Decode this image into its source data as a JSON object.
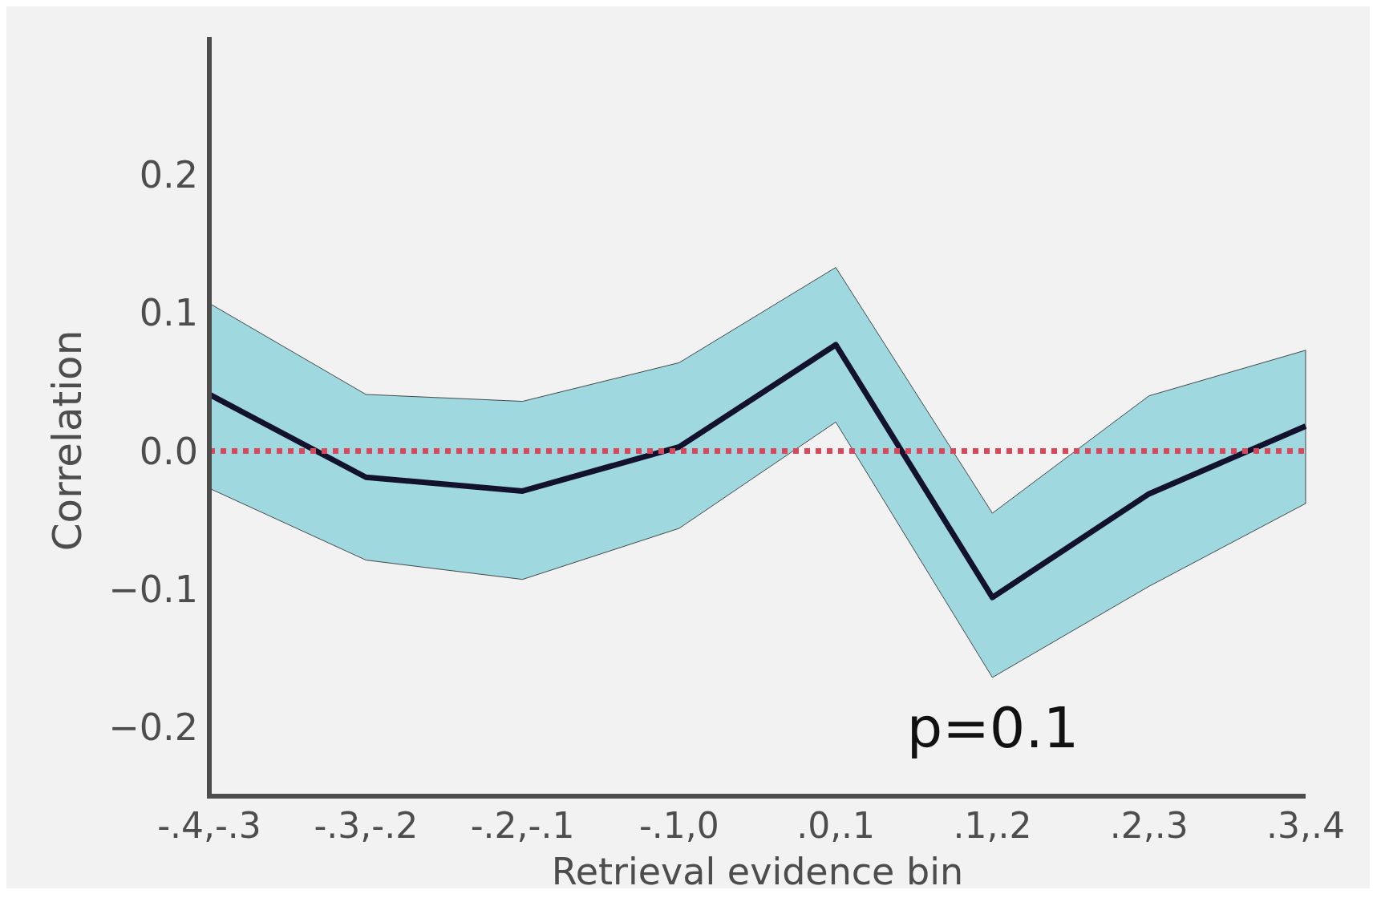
{
  "chart_data": {
    "type": "line",
    "xlabel": "Retrieval evidence bin",
    "ylabel": "Correlation",
    "categories": [
      "-.4,-.3",
      "-.3,-.2",
      "-.2,-.1",
      "-.1,0",
      ".0,.1",
      ".1,.2",
      ".2,.3",
      ".3,.4"
    ],
    "series": [
      {
        "color": "#12112e",
        "values": [
          0.041,
          -0.019,
          -0.029,
          0.003,
          0.077,
          -0.106,
          -0.031,
          0.018
        ],
        "lower": [
          -0.027,
          -0.079,
          -0.093,
          -0.056,
          0.021,
          -0.164,
          -0.098,
          -0.038
        ],
        "upper": [
          0.107,
          0.041,
          0.036,
          0.064,
          0.133,
          -0.045,
          0.04,
          0.073
        ]
      }
    ],
    "ylim": [
      -0.25,
      0.3
    ],
    "yticks": [
      {
        "value": -0.2,
        "label": "−0.2"
      },
      {
        "value": -0.1,
        "label": "−0.1"
      },
      {
        "value": 0,
        "label": "0.0"
      },
      0.1,
      0.2
    ],
    "ref_lines": [
      {
        "axis": "y",
        "value": 0,
        "color": "#d9485a",
        "line_style": "dotted"
      }
    ],
    "annotations": [
      "p=0.1"
    ],
    "grid": false
  }
}
